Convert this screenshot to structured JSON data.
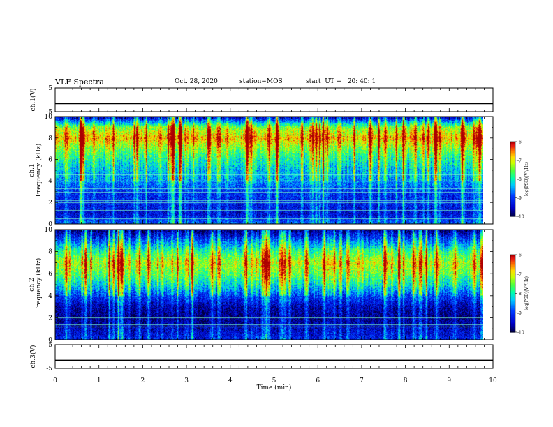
{
  "header": {
    "title": "VLF Spectra",
    "date": "Oct. 28, 2020",
    "station": "station=MOS",
    "start": "start  UT =   20: 40: 1"
  },
  "colorbar": {
    "label": "log(PSD)(V²/Hz)",
    "ticks": [
      "-6",
      "-7",
      "-8",
      "-9",
      "-10"
    ],
    "colors": [
      "#000080",
      "#0000ff",
      "#00b0ff",
      "#00ffb0",
      "#40ff40",
      "#b0ff00",
      "#ffff00",
      "#ffa000",
      "#ff2000",
      "#c00000",
      "#ffffff"
    ]
  },
  "chart_data": [
    {
      "type": "line",
      "name": "ch1-waveform",
      "ylabel": "ch.1(V)",
      "ylim": [
        -5,
        5
      ],
      "y_tick_labels": [
        "5",
        "-5"
      ],
      "x": [
        0,
        10
      ],
      "values": [
        -1.6,
        -1.6
      ]
    },
    {
      "type": "heatmap",
      "name": "ch1-spectrogram",
      "ylabel": "ch.1\nFrequency (kHz)",
      "ylim": [
        0,
        10
      ],
      "y_tick_labels": [
        "0",
        "2",
        "4",
        "6",
        "8",
        "10"
      ],
      "xlim": [
        0,
        9.8
      ],
      "zlim": [
        -10,
        -6
      ],
      "band_profile_kHz": [
        0,
        1,
        2,
        3,
        4,
        5,
        6,
        7,
        8,
        9,
        10
      ],
      "band_level_log_psd": [
        -8.8,
        -9.4,
        -9.2,
        -9.1,
        -8.6,
        -8.4,
        -8.0,
        -7.5,
        -6.8,
        -7.4,
        -9.6
      ],
      "narrowband_lines_kHz": [
        0.5,
        1.3,
        2.0,
        2.2,
        3.0,
        3.3,
        4.0,
        4.6
      ]
    },
    {
      "type": "heatmap",
      "name": "ch2-spectrogram",
      "ylabel": "ch.2\nFrequency (kHz)",
      "ylim": [
        0,
        10
      ],
      "y_tick_labels": [
        "0",
        "2",
        "4",
        "6",
        "8",
        "10"
      ],
      "xlim": [
        0,
        9.8
      ],
      "zlim": [
        -10,
        -6
      ],
      "band_profile_kHz": [
        0,
        1,
        2,
        3,
        4,
        5,
        6,
        7,
        8,
        9,
        10
      ],
      "band_level_log_psd": [
        -9.2,
        -9.5,
        -9.8,
        -9.6,
        -9.0,
        -8.2,
        -7.6,
        -7.2,
        -7.8,
        -8.8,
        -9.8
      ],
      "narrowband_lines_kHz": [
        1.2,
        1.4,
        2.0
      ]
    },
    {
      "type": "line",
      "name": "ch3-waveform",
      "ylabel": "ch.3(V)",
      "ylim": [
        -5,
        5
      ],
      "y_tick_labels": [
        "5",
        "-5"
      ],
      "x": [
        0,
        10
      ],
      "values": [
        -1.6,
        -1.6
      ]
    }
  ],
  "x_axis": {
    "label": "Time (min)",
    "ticks": [
      "0",
      "1",
      "2",
      "3",
      "4",
      "5",
      "6",
      "7",
      "8",
      "9",
      "10"
    ],
    "xlim": [
      0,
      10
    ]
  }
}
